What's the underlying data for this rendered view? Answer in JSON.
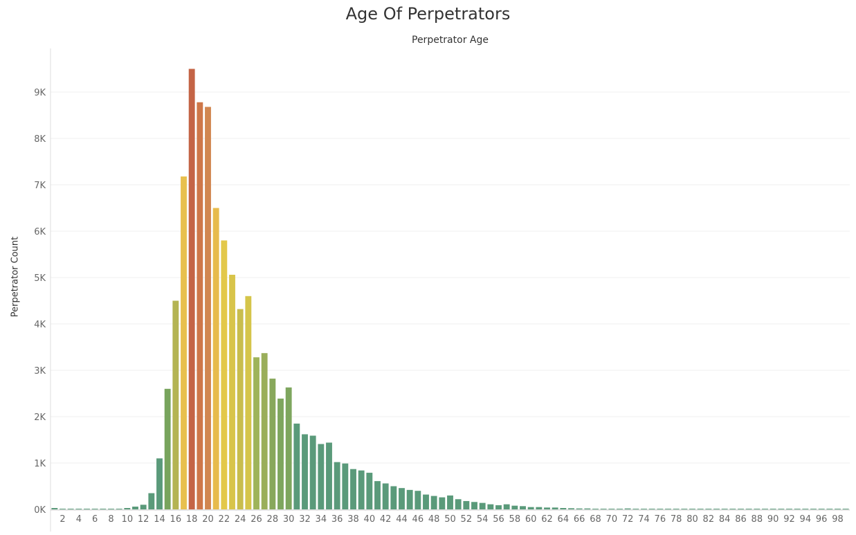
{
  "chart_data": {
    "type": "bar",
    "title": "Age Of Perpetrators",
    "xlabel": "Perpetrator Age",
    "ylabel": "Perpetrator Count",
    "x": [
      1,
      2,
      3,
      4,
      5,
      6,
      7,
      8,
      9,
      10,
      11,
      12,
      13,
      14,
      15,
      16,
      17,
      18,
      19,
      20,
      21,
      22,
      23,
      24,
      25,
      26,
      27,
      28,
      29,
      30,
      31,
      32,
      33,
      34,
      35,
      36,
      37,
      38,
      39,
      40,
      41,
      42,
      43,
      44,
      45,
      46,
      47,
      48,
      49,
      50,
      51,
      52,
      53,
      54,
      55,
      56,
      57,
      58,
      59,
      60,
      61,
      62,
      63,
      64,
      65,
      66,
      67,
      68,
      69,
      70,
      71,
      72,
      73,
      74,
      75,
      76,
      77,
      78,
      79,
      80,
      81,
      82,
      83,
      84,
      85,
      86,
      87,
      88,
      89,
      90,
      91,
      92,
      93,
      94,
      95,
      96,
      97,
      98,
      99
    ],
    "values": [
      30,
      5,
      5,
      5,
      5,
      5,
      5,
      5,
      10,
      30,
      60,
      100,
      350,
      1100,
      2600,
      4500,
      7180,
      9500,
      8780,
      8680,
      6500,
      5800,
      5060,
      4320,
      4600,
      3280,
      3370,
      2820,
      2390,
      2630,
      1850,
      1620,
      1590,
      1410,
      1440,
      1020,
      990,
      870,
      840,
      790,
      610,
      560,
      500,
      460,
      420,
      400,
      320,
      290,
      260,
      300,
      220,
      180,
      160,
      140,
      110,
      90,
      110,
      80,
      70,
      50,
      50,
      40,
      40,
      30,
      25,
      20,
      20,
      15,
      15,
      10,
      10,
      20,
      10,
      5,
      5,
      5,
      5,
      5,
      5,
      5,
      5,
      5,
      5,
      5,
      5,
      5,
      5,
      5,
      5,
      5,
      5,
      5,
      5,
      5,
      5,
      5,
      5,
      5,
      10
    ],
    "colors": [
      "#5a9a7a",
      "#5a9a7a",
      "#5a9a7a",
      "#5a9a7a",
      "#5a9a7a",
      "#5a9a7a",
      "#5a9a7a",
      "#5a9a7a",
      "#5a9a7a",
      "#5a9a7a",
      "#5a9a7a",
      "#5a9a7a",
      "#5a9a7a",
      "#5a9a7a",
      "#78a45d",
      "#b4b453",
      "#e8c04e",
      "#c46446",
      "#ce7749",
      "#d18650",
      "#e7bb4c",
      "#e3c84a",
      "#d8c44a",
      "#c8bd4d",
      "#d5c54a",
      "#9eb45a",
      "#9aae5a",
      "#88a85c",
      "#7ea65e",
      "#7ea65e",
      "#5a9a7a",
      "#5a9a7a",
      "#5a9a7a",
      "#5a9a7a",
      "#5a9a7a",
      "#5a9a7a",
      "#5a9a7a",
      "#5a9a7a",
      "#5a9a7a",
      "#5a9a7a",
      "#5a9a7a",
      "#5a9a7a",
      "#5a9a7a",
      "#5a9a7a",
      "#5a9a7a",
      "#5a9a7a",
      "#5a9a7a",
      "#5a9a7a",
      "#5a9a7a",
      "#5a9a7a",
      "#5a9a7a",
      "#5a9a7a",
      "#5a9a7a",
      "#5a9a7a",
      "#5a9a7a",
      "#5a9a7a",
      "#5a9a7a",
      "#5a9a7a",
      "#5a9a7a",
      "#5a9a7a",
      "#5a9a7a",
      "#5a9a7a",
      "#5a9a7a",
      "#5a9a7a",
      "#5a9a7a",
      "#5a9a7a",
      "#5a9a7a",
      "#5a9a7a",
      "#5a9a7a",
      "#5a9a7a",
      "#5a9a7a",
      "#5a9a7a",
      "#5a9a7a",
      "#5a9a7a",
      "#5a9a7a",
      "#5a9a7a",
      "#5a9a7a",
      "#5a9a7a",
      "#5a9a7a",
      "#5a9a7a",
      "#5a9a7a",
      "#5a9a7a",
      "#5a9a7a",
      "#5a9a7a",
      "#5a9a7a",
      "#5a9a7a",
      "#5a9a7a",
      "#5a9a7a",
      "#5a9a7a",
      "#5a9a7a",
      "#5a9a7a",
      "#5a9a7a",
      "#5a9a7a",
      "#5a9a7a",
      "#5a9a7a",
      "#5a9a7a",
      "#5a9a7a",
      "#5a9a7a",
      "#5a9a7a"
    ],
    "xticks": [
      2,
      4,
      6,
      8,
      10,
      12,
      14,
      16,
      18,
      20,
      22,
      24,
      26,
      28,
      30,
      32,
      34,
      36,
      38,
      40,
      42,
      44,
      46,
      48,
      50,
      52,
      54,
      56,
      58,
      60,
      62,
      64,
      66,
      68,
      70,
      72,
      74,
      76,
      78,
      80,
      82,
      84,
      86,
      88,
      90,
      92,
      94,
      96,
      98
    ],
    "yticks": [
      0,
      1000,
      2000,
      3000,
      4000,
      5000,
      6000,
      7000,
      8000,
      9000
    ],
    "ytick_labels": [
      "0K",
      "1K",
      "2K",
      "3K",
      "4K",
      "5K",
      "6K",
      "7K",
      "8K",
      "9K"
    ],
    "ylim": [
      0,
      9900
    ],
    "grid": true,
    "x_axis_position": "top"
  }
}
